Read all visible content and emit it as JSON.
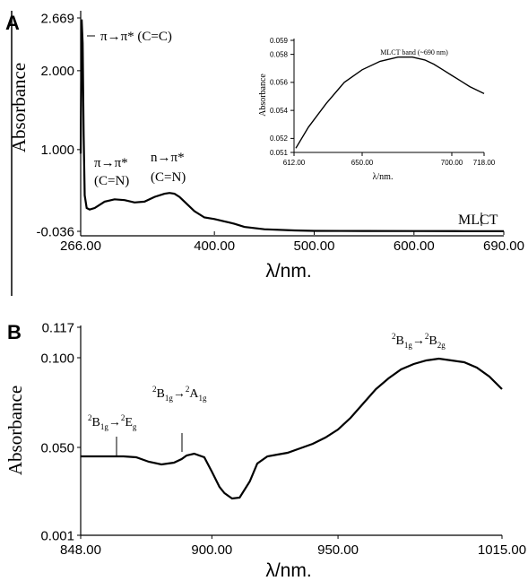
{
  "chart_data": [
    {
      "panel_label": "A",
      "type": "line",
      "xlabel": "λ/nm.",
      "ylabel": "Absorbance",
      "xlim": [
        266,
        690
      ],
      "ylim": [
        -0.036,
        2.669
      ],
      "x_ticks": [
        "266.00",
        "400.00",
        "500.00",
        "600.00",
        "690.00"
      ],
      "x_tick_values": [
        266,
        400,
        500,
        600,
        690
      ],
      "y_ticks": [
        "2.669",
        "2.000",
        "1.000",
        "-0.036"
      ],
      "y_tick_values": [
        2.669,
        2.0,
        1.0,
        -0.036
      ],
      "series": [
        {
          "x": [
            266,
            267,
            268,
            269,
            270,
            272,
            275,
            280,
            290,
            300,
            310,
            320,
            330,
            340,
            350,
            355,
            360,
            365,
            370,
            380,
            390,
            400,
            410,
            420,
            430,
            450,
            480,
            500,
            550,
            600,
            650,
            690
          ],
          "y": [
            0.95,
            2.65,
            2.35,
            1.2,
            0.42,
            0.26,
            0.24,
            0.26,
            0.34,
            0.37,
            0.36,
            0.33,
            0.34,
            0.4,
            0.44,
            0.45,
            0.44,
            0.4,
            0.34,
            0.22,
            0.14,
            0.12,
            0.09,
            0.06,
            0.02,
            -0.01,
            -0.025,
            -0.03,
            -0.032,
            -0.033,
            -0.034,
            -0.034
          ]
        }
      ],
      "annotations": [
        {
          "text": "π→π* (C=C)",
          "x": 266,
          "y": 2.669
        },
        {
          "text": "π→π*",
          "text2": "(C=N)",
          "x": 300,
          "y": 0.37
        },
        {
          "text": "n→π*",
          "text2": "(C=N)",
          "x": 355,
          "y": 0.45
        },
        {
          "text": "MLCT",
          "x": 680,
          "y": 0.0
        }
      ],
      "inset": {
        "title": "MLCT band (~690 nm)",
        "xlabel": "λ/nm.",
        "ylabel": "Absorbance",
        "xlim": [
          612,
          718
        ],
        "ylim": [
          0.051,
          0.059
        ],
        "x_ticks": [
          "612.00",
          "650.00",
          "700.00",
          "718.00"
        ],
        "x_tick_values": [
          612,
          650,
          700,
          718
        ],
        "y_ticks": [
          "0.059",
          "0.058",
          "0.056",
          "0.054",
          "0.052",
          "0.051"
        ],
        "y_tick_values": [
          0.059,
          0.058,
          0.056,
          0.054,
          0.052,
          0.051
        ],
        "x": [
          613,
          620,
          630,
          640,
          650,
          660,
          670,
          678,
          685,
          690,
          695,
          700,
          705,
          710,
          718
        ],
        "y": [
          0.0513,
          0.0528,
          0.0545,
          0.056,
          0.0569,
          0.0575,
          0.0578,
          0.0578,
          0.0576,
          0.0573,
          0.0569,
          0.0565,
          0.0561,
          0.0557,
          0.0552
        ]
      }
    },
    {
      "panel_label": "B",
      "type": "line",
      "xlabel": "λ/nm.",
      "ylabel": "Absorbance",
      "xlim": [
        848,
        1015
      ],
      "ylim": [
        0.001,
        0.117
      ],
      "x_ticks": [
        "848.00",
        "900.00",
        "950.00",
        "1015.00"
      ],
      "x_tick_values": [
        848,
        900,
        950,
        1015
      ],
      "y_ticks": [
        "0.117",
        "0.100",
        "0.050",
        "0.001"
      ],
      "y_tick_values": [
        0.117,
        0.1,
        0.05,
        0.001
      ],
      "series": [
        {
          "x": [
            848,
            855,
            860,
            865,
            870,
            875,
            880,
            885,
            888,
            890,
            893,
            897,
            900,
            903,
            905,
            908,
            911,
            915,
            918,
            922,
            926,
            930,
            935,
            940,
            945,
            950,
            955,
            960,
            965,
            970,
            975,
            980,
            985,
            990,
            995,
            1000,
            1005,
            1010,
            1015
          ],
          "y": [
            0.045,
            0.045,
            0.045,
            0.045,
            0.0445,
            0.042,
            0.0405,
            0.0415,
            0.0435,
            0.0455,
            0.0465,
            0.0445,
            0.0365,
            0.028,
            0.0245,
            0.0215,
            0.022,
            0.031,
            0.041,
            0.045,
            0.046,
            0.047,
            0.0495,
            0.052,
            0.0555,
            0.06,
            0.0665,
            0.0745,
            0.0825,
            0.0885,
            0.0935,
            0.0965,
            0.0985,
            0.0995,
            0.0985,
            0.0975,
            0.0945,
            0.0895,
            0.0825
          ]
        }
      ],
      "annotations": [
        {
          "text": "2B1g→2Eg",
          "x": 862,
          "y": 0.045
        },
        {
          "text": "2B1g→2A1g",
          "x": 885,
          "y": 0.0455
        },
        {
          "text": "2B1g→2B2g",
          "x": 980,
          "y": 0.0965
        }
      ]
    }
  ]
}
